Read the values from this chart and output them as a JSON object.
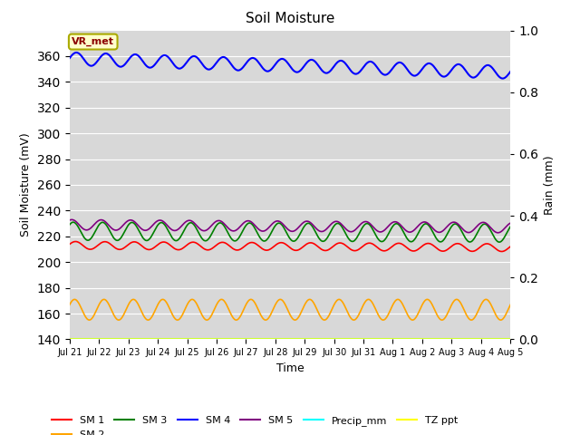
{
  "title": "Soil Moisture",
  "ylabel_left": "Soil Moisture (mV)",
  "ylabel_right": "Rain (mm)",
  "xlabel": "Time",
  "ylim_left": [
    140,
    380
  ],
  "ylim_right": [
    0.0,
    1.0
  ],
  "yticks_left": [
    140,
    160,
    180,
    200,
    220,
    240,
    260,
    280,
    300,
    320,
    340,
    360
  ],
  "yticks_right": [
    0.0,
    0.2,
    0.4,
    0.6,
    0.8,
    1.0
  ],
  "bg_color": "#d8d8d8",
  "annotation_text": "VR_met",
  "n_days": 15,
  "sm1_base": 213,
  "sm1_amp": 3,
  "sm1_trend": -0.12,
  "sm2_base": 163,
  "sm2_amp": 8,
  "sm2_trend": 0.0,
  "sm3_base": 224,
  "sm3_amp": 7,
  "sm3_trend": -0.1,
  "sm4_base": 358,
  "sm4_amp": 5,
  "sm4_trend": -0.7,
  "sm5_base": 229,
  "sm5_amp": 4,
  "sm5_trend": -0.15,
  "tz_value": 140,
  "precip_value": 0.0,
  "figsize": [
    6.4,
    4.8
  ],
  "dpi": 100
}
